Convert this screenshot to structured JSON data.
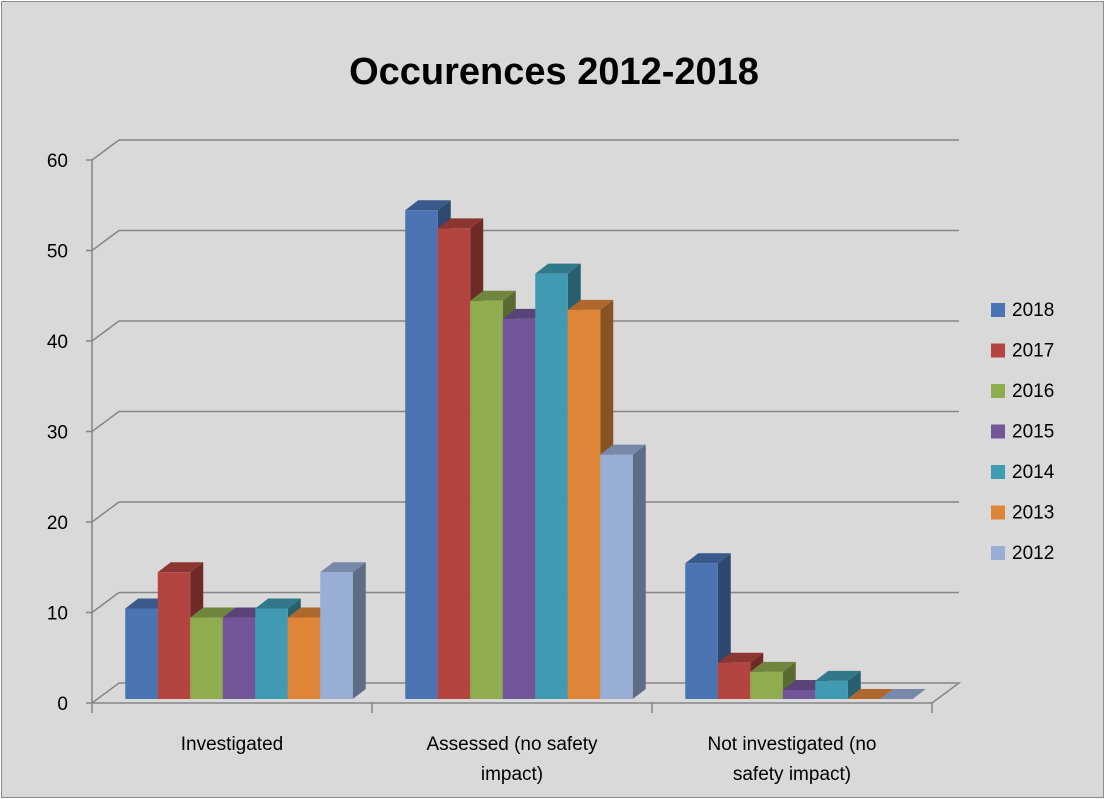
{
  "chart_data": {
    "type": "bar",
    "title": "Occurences 2012-2018",
    "xlabel": "",
    "ylabel": "",
    "ylim": [
      0,
      60
    ],
    "yticks": [
      0,
      10,
      20,
      30,
      40,
      50,
      60
    ],
    "grid": true,
    "legend_position": "right",
    "categories": [
      [
        "Investigated"
      ],
      [
        "Assessed (no safety",
        "impact)"
      ],
      [
        "Not investigated (no",
        "safety impact)"
      ]
    ],
    "series": [
      {
        "name": "2018",
        "color": "#4a74b3",
        "values": [
          10,
          54,
          15
        ]
      },
      {
        "name": "2017",
        "color": "#b3443f",
        "values": [
          14,
          52,
          4
        ]
      },
      {
        "name": "2016",
        "color": "#8fac4f",
        "values": [
          9,
          44,
          3
        ]
      },
      {
        "name": "2015",
        "color": "#73569a",
        "values": [
          9,
          42,
          1
        ]
      },
      {
        "name": "2014",
        "color": "#3f9ab2",
        "values": [
          10,
          47,
          2
        ]
      },
      {
        "name": "2013",
        "color": "#df8537",
        "values": [
          9,
          43,
          0
        ]
      },
      {
        "name": "2012",
        "color": "#98aed7",
        "values": [
          14,
          27,
          0
        ]
      }
    ]
  }
}
